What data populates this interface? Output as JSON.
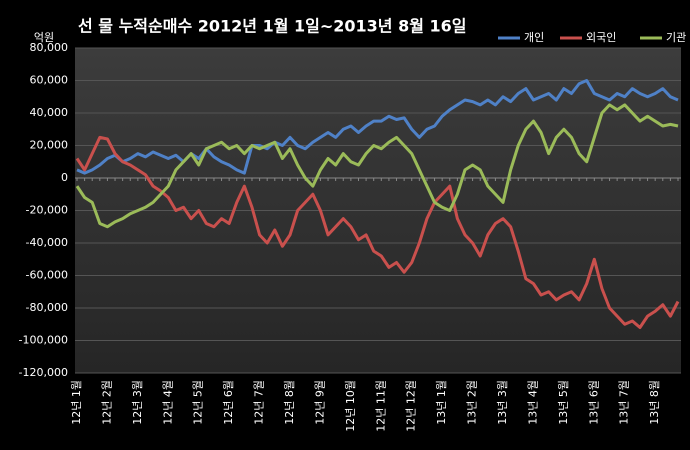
{
  "chart_data": {
    "type": "line",
    "title": "선 물 누적순매수 2012년 1월 1일~2013년 8월 16일",
    "y_label": "억원",
    "categories": [
      "12년 1월",
      null,
      null,
      null,
      "12년 2월",
      null,
      null,
      null,
      "12년 3월",
      null,
      null,
      null,
      "12년 4월",
      null,
      null,
      null,
      "12년 5월",
      null,
      null,
      null,
      "12년 6월",
      null,
      null,
      null,
      "12년 7월",
      null,
      null,
      null,
      "12년 8월",
      null,
      null,
      null,
      "12년 9월",
      null,
      null,
      null,
      "12년 10월",
      null,
      null,
      null,
      "12년 11월",
      null,
      null,
      null,
      "12년 12월",
      null,
      null,
      null,
      "13년 1월",
      null,
      null,
      null,
      "13년 2월",
      null,
      null,
      null,
      "13년 3월",
      null,
      null,
      null,
      "13년 4월",
      null,
      null,
      null,
      "13년 5월",
      null,
      null,
      null,
      "13년 6월",
      null,
      null,
      null,
      "13년 7월",
      null,
      null,
      null,
      "13년 8월",
      null,
      null,
      null
    ],
    "series": [
      {
        "name": "개인",
        "color": "#4f81c7",
        "values": [
          5000,
          3000,
          5000,
          8000,
          12000,
          14000,
          10000,
          12000,
          15000,
          13000,
          16000,
          14000,
          12000,
          14000,
          10000,
          15000,
          12000,
          18000,
          13000,
          10000,
          8000,
          5000,
          3000,
          20000,
          20000,
          18000,
          22000,
          20000,
          25000,
          20000,
          18000,
          22000,
          25000,
          28000,
          25000,
          30000,
          32000,
          28000,
          32000,
          35000,
          35000,
          38000,
          36000,
          37000,
          30000,
          25000,
          30000,
          32000,
          38000,
          42000,
          45000,
          48000,
          47000,
          45000,
          48000,
          45000,
          50000,
          47000,
          52000,
          55000,
          48000,
          50000,
          52000,
          48000,
          55000,
          52000,
          58000,
          60000,
          52000,
          50000,
          48000,
          52000,
          50000,
          55000,
          52000,
          50000,
          52000,
          55000,
          50000,
          48000
        ]
      },
      {
        "name": "외국인",
        "color": "#c9504d",
        "values": [
          12000,
          5000,
          15000,
          25000,
          24000,
          15000,
          10000,
          8000,
          5000,
          2000,
          -5000,
          -8000,
          -12000,
          -20000,
          -18000,
          -25000,
          -20000,
          -28000,
          -30000,
          -25000,
          -28000,
          -15000,
          -5000,
          -18000,
          -35000,
          -40000,
          -32000,
          -42000,
          -35000,
          -20000,
          -15000,
          -10000,
          -20000,
          -35000,
          -30000,
          -25000,
          -30000,
          -38000,
          -35000,
          -45000,
          -48000,
          -55000,
          -52000,
          -58000,
          -52000,
          -40000,
          -25000,
          -15000,
          -10000,
          -5000,
          -25000,
          -35000,
          -40000,
          -48000,
          -35000,
          -28000,
          -25000,
          -30000,
          -45000,
          -62000,
          -65000,
          -72000,
          -70000,
          -75000,
          -72000,
          -70000,
          -75000,
          -65000,
          -50000,
          -68000,
          -80000,
          -85000,
          -90000,
          -88000,
          -92000,
          -85000,
          -82000,
          -78000,
          -85000,
          -76000
        ]
      },
      {
        "name": "기관",
        "color": "#9bbb59",
        "values": [
          -5000,
          -12000,
          -15000,
          -28000,
          -30000,
          -27000,
          -25000,
          -22000,
          -20000,
          -18000,
          -15000,
          -10000,
          -5000,
          5000,
          10000,
          15000,
          8000,
          18000,
          20000,
          22000,
          18000,
          20000,
          15000,
          20000,
          18000,
          20000,
          22000,
          12000,
          18000,
          8000,
          0,
          -5000,
          5000,
          12000,
          8000,
          15000,
          10000,
          8000,
          15000,
          20000,
          18000,
          22000,
          25000,
          20000,
          15000,
          5000,
          -5000,
          -15000,
          -18000,
          -20000,
          -10000,
          5000,
          8000,
          5000,
          -5000,
          -10000,
          -15000,
          5000,
          20000,
          30000,
          35000,
          28000,
          15000,
          25000,
          30000,
          25000,
          15000,
          10000,
          25000,
          40000,
          45000,
          42000,
          45000,
          40000,
          35000,
          38000,
          35000,
          32000,
          33000,
          32000
        ]
      }
    ],
    "ylim": [
      -120000,
      80000
    ],
    "yticks": [
      {
        "value": -120000,
        "label": "-120,000"
      },
      {
        "value": -100000,
        "label": "-100,000"
      },
      {
        "value": -80000,
        "label": "-80,000"
      },
      {
        "value": -60000,
        "label": "-60,000"
      },
      {
        "value": -40000,
        "label": "-40,000"
      },
      {
        "value": -20000,
        "label": "-20,000"
      },
      0,
      {
        "value": 20000,
        "label": "20,000"
      },
      {
        "value": 40000,
        "label": "40,000"
      },
      {
        "value": 60000,
        "label": "60,000"
      },
      {
        "value": 80000,
        "label": "80,000"
      }
    ],
    "grid": true,
    "legend": "top-right"
  }
}
